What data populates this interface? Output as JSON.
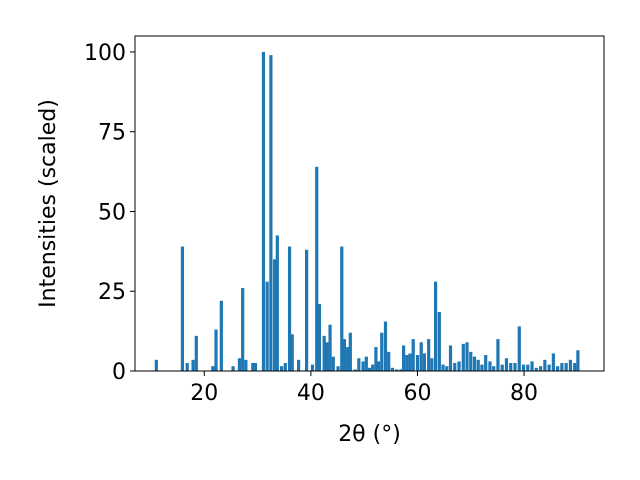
{
  "chart_data": {
    "type": "bar",
    "xlabel": "2θ (°)",
    "ylabel": "Intensities (scaled)",
    "xlim": [
      7,
      95
    ],
    "ylim": [
      0,
      105
    ],
    "xticks": [
      20,
      40,
      60,
      80
    ],
    "yticks": [
      0,
      25,
      50,
      75,
      100
    ],
    "bar_color": "#1f77b4",
    "bar_width": 0.6,
    "x": [
      11.0,
      15.9,
      16.8,
      17.9,
      18.5,
      21.6,
      22.2,
      23.2,
      25.4,
      26.6,
      27.2,
      27.8,
      29.1,
      29.6,
      31.1,
      31.8,
      32.5,
      33.2,
      33.7,
      34.5,
      35.2,
      36.0,
      36.5,
      37.7,
      39.2,
      40.3,
      41.1,
      41.6,
      42.5,
      43.0,
      43.6,
      44.2,
      45.1,
      45.8,
      46.3,
      46.9,
      47.4,
      48.3,
      49.0,
      49.8,
      50.4,
      51.0,
      51.6,
      52.2,
      52.7,
      53.3,
      54.0,
      54.6,
      55.3,
      56.1,
      56.9,
      57.4,
      58.0,
      58.6,
      59.2,
      60.0,
      60.7,
      61.3,
      62.1,
      62.7,
      63.4,
      64.1,
      64.8,
      65.5,
      66.2,
      67.0,
      67.8,
      68.6,
      69.3,
      70.0,
      70.7,
      71.4,
      72.1,
      72.8,
      73.6,
      74.3,
      75.1,
      75.9,
      76.7,
      77.5,
      78.3,
      79.1,
      79.9,
      80.7,
      81.5,
      82.3,
      83.1,
      83.9,
      84.7,
      85.5,
      86.3,
      87.1,
      87.9,
      88.7,
      89.5,
      90.1
    ],
    "values": [
      3.5,
      39,
      2.5,
      3.5,
      11,
      1.5,
      13,
      22,
      1.5,
      4,
      26,
      3.5,
      2.5,
      2.5,
      100,
      28,
      99,
      35,
      42.5,
      1.5,
      2.5,
      39,
      11.5,
      3.5,
      38,
      2,
      64,
      21,
      11,
      9,
      14.5,
      4.5,
      1.5,
      39,
      10,
      7.5,
      12,
      0.5,
      4,
      3,
      4.5,
      1,
      2,
      7.5,
      3,
      12,
      15.5,
      6,
      1,
      0.5,
      0.5,
      8,
      5,
      5.5,
      10,
      5,
      9,
      5.5,
      10,
      4,
      28,
      18.5,
      2,
      1.5,
      8,
      2.5,
      3,
      8.5,
      9,
      6,
      4.5,
      3.5,
      2,
      5,
      3,
      1.5,
      10,
      2,
      4,
      2.5,
      2.5,
      14,
      2,
      2,
      3,
      1,
      1.5,
      3.5,
      2,
      5.5,
      1.5,
      2.5,
      2.5,
      3.5,
      2.5,
      6.5
    ],
    "grid": false,
    "legend": "none"
  }
}
